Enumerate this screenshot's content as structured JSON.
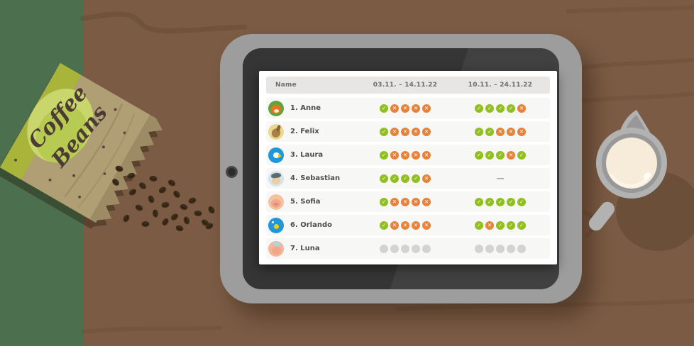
{
  "bag": {
    "label_line1": "Coffee",
    "label_line2": "Beans"
  },
  "table": {
    "columns": [
      "Name",
      "03.11. – 14.11.22",
      "10.11. – 24.11.22"
    ],
    "dash_symbol": "—",
    "rows": [
      {
        "name": "1. Anne",
        "avatar": "fox",
        "period1": [
          "check",
          "cross",
          "cross",
          "cross",
          "cross"
        ],
        "period2": [
          "check",
          "check",
          "check",
          "check",
          "cross"
        ]
      },
      {
        "name": "2. Felix",
        "avatar": "rabbit",
        "period1": [
          "check",
          "cross",
          "cross",
          "cross",
          "cross"
        ],
        "period2": [
          "check",
          "check",
          "cross",
          "cross",
          "cross"
        ]
      },
      {
        "name": "3. Laura",
        "avatar": "bird",
        "period1": [
          "check",
          "cross",
          "cross",
          "cross",
          "cross"
        ],
        "period2": [
          "check",
          "check",
          "check",
          "cross",
          "check"
        ]
      },
      {
        "name": "4. Sebastian",
        "avatar": "cap",
        "period1": [
          "check",
          "check",
          "check",
          "check",
          "cross"
        ],
        "period2": "dash"
      },
      {
        "name": "5. Sofia",
        "avatar": "pig",
        "period1": [
          "check",
          "cross",
          "cross",
          "cross",
          "cross"
        ],
        "period2": [
          "check",
          "check",
          "check",
          "check",
          "check"
        ]
      },
      {
        "name": "6. Orlando",
        "avatar": "nightbird",
        "period1": [
          "check",
          "cross",
          "cross",
          "cross",
          "cross"
        ],
        "period2": [
          "check",
          "cross",
          "check",
          "check",
          "check"
        ]
      },
      {
        "name": "7. Luna",
        "avatar": "luna",
        "period1": [
          "dot",
          "dot",
          "dot",
          "dot",
          "dot"
        ],
        "period2": [
          "dot",
          "dot",
          "dot",
          "dot",
          "dot"
        ]
      }
    ]
  },
  "status_colors": {
    "check": "#90bf1f",
    "cross": "#e8813a",
    "pending": "#d3d3d3"
  },
  "status_glyphs": {
    "check": "✓",
    "cross": "✕"
  }
}
